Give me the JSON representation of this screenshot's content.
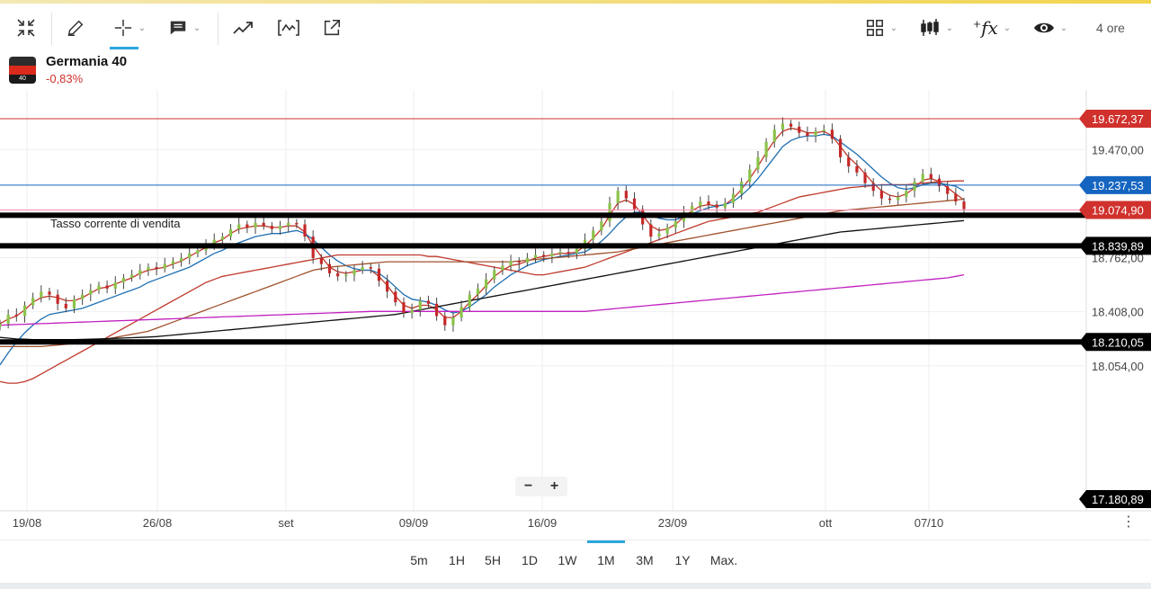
{
  "toolbar": {
    "timeframe_label": "4 ore",
    "icons": [
      "collapse-icon",
      "pencil-icon",
      "crosshair-icon",
      "comment-icon",
      "trend-icon",
      "indicator-box-icon",
      "external-link-icon",
      "layout-grid-icon",
      "candles-icon",
      "fx-icon",
      "eye-icon"
    ]
  },
  "instrument": {
    "name": "Germania 40",
    "change": "-0,83%",
    "flag_label": "40"
  },
  "chart_data": {
    "type": "line",
    "annotation": "Tasso corrente di vendita",
    "x_labels": [
      "19/08",
      "26/08",
      "set",
      "09/09",
      "16/09",
      "23/09",
      "ott",
      "07/10"
    ],
    "y_ticks": [
      "19.470,00",
      "18.762,00",
      "18.408,00",
      "18.054,00"
    ],
    "ylim": [
      17180.89,
      19672.37
    ],
    "price_tags": [
      {
        "value": 19672.37,
        "label": "19.672,37",
        "color": "#d0312d",
        "line": "#d0312d",
        "weight": 1
      },
      {
        "value": 19237.53,
        "label": "19.237,53",
        "color": "#1565c0",
        "line": "#1565c0",
        "weight": 1
      },
      {
        "value": 19074.9,
        "label": "19.074,90",
        "color": "#d0312d",
        "line": "#f48fb1",
        "weight": 1
      },
      {
        "value": 18839.89,
        "label": "18.839,89",
        "color": "#000000",
        "line": "#000000",
        "weight": 6
      },
      {
        "value": 18210.05,
        "label": "18.210,05",
        "color": "#000000",
        "line": "#000000",
        "weight": 6
      },
      {
        "value": 17180.89,
        "label": "17.180,89",
        "color": "#000000",
        "line": null,
        "weight": 0
      }
    ],
    "support_line_extra": 19040,
    "candles_close": [
      18330,
      18390,
      18380,
      18450,
      18500,
      18540,
      18520,
      18460,
      18430,
      18490,
      18520,
      18550,
      18580,
      18560,
      18600,
      18630,
      18650,
      18680,
      18700,
      18690,
      18720,
      18740,
      18760,
      18790,
      18810,
      18850,
      18880,
      18900,
      18950,
      18980,
      18960,
      18990,
      18970,
      18950,
      18970,
      18990,
      18980,
      18900,
      18760,
      18720,
      18660,
      18640,
      18650,
      18680,
      18700,
      18690,
      18610,
      18540,
      18470,
      18400,
      18420,
      18480,
      18460,
      18380,
      18320,
      18370,
      18440,
      18520,
      18560,
      18620,
      18680,
      18710,
      18740,
      18730,
      18760,
      18780,
      18770,
      18790,
      18800,
      18790,
      18820,
      18880,
      18940,
      19000,
      19120,
      19200,
      19150,
      19080,
      18980,
      18900,
      18920,
      18960,
      19000,
      19060,
      19100,
      19130,
      19110,
      19090,
      19120,
      19180,
      19260,
      19340,
      19420,
      19520,
      19600,
      19640,
      19620,
      19580,
      19560,
      19590,
      19600,
      19540,
      19420,
      19360,
      19320,
      19250,
      19200,
      19150,
      19140,
      19160,
      19200,
      19260,
      19310,
      19280,
      19230,
      19180,
      19130,
      19080
    ],
    "series": [
      {
        "color": "#c0392b",
        "values": [
          18330,
          18360,
          18380,
          18420,
          18470,
          18500,
          18510,
          18500,
          18480,
          18480,
          18500,
          18530,
          18560,
          18570,
          18590,
          18610,
          18630,
          18660,
          18680,
          18690,
          18700,
          18720,
          18740,
          18770,
          18800,
          18830,
          18860,
          18880,
          18920,
          18950,
          18960,
          18970,
          18970,
          18960,
          18960,
          18970,
          18970,
          18930,
          18840,
          18770,
          18700,
          18670,
          18660,
          18670,
          18680,
          18680,
          18640,
          18580,
          18510,
          18450,
          18430,
          18450,
          18450,
          18420,
          18370,
          18370,
          18410,
          18470,
          18520,
          18580,
          18640,
          18680,
          18710,
          18720,
          18740,
          18760,
          18770,
          18780,
          18790,
          18790,
          18800,
          18840,
          18890,
          18950,
          19040,
          19120,
          19140,
          19110,
          19040,
          18970,
          18940,
          18950,
          18980,
          19030,
          19070,
          19100,
          19110,
          19100,
          19110,
          19150,
          19210,
          19280,
          19360,
          19450,
          19530,
          19590,
          19610,
          19600,
          19580,
          19580,
          19590,
          19560,
          19490,
          19420,
          19370,
          19310,
          19250,
          19200,
          19170,
          19160,
          19180,
          19220,
          19270,
          19280,
          19260,
          19220,
          19180,
          19140
        ]
      },
      {
        "color": "#1f6fb2",
        "values": [
          18060,
          18140,
          18210,
          18270,
          18320,
          18360,
          18390,
          18400,
          18410,
          18420,
          18430,
          18450,
          18470,
          18490,
          18510,
          18530,
          18550,
          18570,
          18600,
          18620,
          18640,
          18660,
          18680,
          18700,
          18730,
          18760,
          18790,
          18810,
          18840,
          18860,
          18880,
          18900,
          18910,
          18920,
          18920,
          18930,
          18940,
          18920,
          18880,
          18830,
          18780,
          18740,
          18710,
          18690,
          18680,
          18680,
          18660,
          18620,
          18570,
          18520,
          18490,
          18480,
          18470,
          18450,
          18420,
          18400,
          18410,
          18440,
          18480,
          18520,
          18570,
          18610,
          18650,
          18680,
          18710,
          18730,
          18750,
          18760,
          18770,
          18780,
          18790,
          18800,
          18830,
          18870,
          18920,
          18980,
          19030,
          19060,
          19060,
          19040,
          19020,
          19010,
          19010,
          19030,
          19050,
          19070,
          19090,
          19100,
          19110,
          19130,
          19170,
          19220,
          19280,
          19350,
          19420,
          19490,
          19530,
          19550,
          19560,
          19560,
          19570,
          19560,
          19520,
          19480,
          19440,
          19390,
          19340,
          19290,
          19250,
          19220,
          19210,
          19220,
          19240,
          19250,
          19250,
          19240,
          19230,
          19200
        ]
      },
      {
        "color": "#c0392b",
        "values": [
          17950,
          17940,
          17940,
          17950,
          17970,
          18000,
          18030,
          18060,
          18090,
          18120,
          18150,
          18180,
          18210,
          18240,
          18270,
          18300,
          18330,
          18360,
          18390,
          18420,
          18450,
          18480,
          18510,
          18540,
          18570,
          18600,
          18620,
          18640,
          18650,
          18660,
          18670,
          18680,
          18690,
          18700,
          18710,
          18720,
          18730,
          18740,
          18750,
          18760,
          18770,
          18780,
          18780,
          18780,
          18780,
          18780,
          18780,
          18780,
          18780,
          18780,
          18780,
          18780,
          18770,
          18770,
          18760,
          18750,
          18740,
          18730,
          18720,
          18710,
          18700,
          18690,
          18680,
          18670,
          18660,
          18650,
          18650,
          18660,
          18670,
          18680,
          18690,
          18700,
          18720,
          18740,
          18760,
          18780,
          18800,
          18820,
          18840,
          18860,
          18880,
          18900,
          18920,
          18940,
          18960,
          18980,
          19000,
          19010,
          19020,
          19030,
          19040,
          19050,
          19060,
          19080,
          19100,
          19120,
          19140,
          19160,
          19170,
          19180,
          19190,
          19200,
          19210,
          19220,
          19225,
          19230,
          19235,
          19240,
          19240,
          19240,
          19240,
          19245,
          19250,
          19255,
          19260,
          19262,
          19265,
          19265
        ]
      },
      {
        "color": "#a0522d",
        "values": [
          18180,
          18180,
          18180,
          18180,
          18180,
          18180,
          18185,
          18190,
          18195,
          18200,
          18205,
          18210,
          18220,
          18230,
          18240,
          18250,
          18260,
          18270,
          18280,
          18300,
          18320,
          18340,
          18360,
          18380,
          18400,
          18420,
          18440,
          18460,
          18480,
          18500,
          18520,
          18540,
          18560,
          18580,
          18600,
          18620,
          18640,
          18660,
          18680,
          18690,
          18700,
          18705,
          18710,
          18715,
          18720,
          18725,
          18730,
          18735,
          18735,
          18735,
          18735,
          18735,
          18735,
          18735,
          18735,
          18735,
          18735,
          18735,
          18735,
          18735,
          18735,
          18735,
          18735,
          18740,
          18745,
          18750,
          18755,
          18760,
          18765,
          18770,
          18775,
          18780,
          18785,
          18790,
          18795,
          18800,
          18810,
          18820,
          18830,
          18840,
          18850,
          18860,
          18870,
          18880,
          18890,
          18900,
          18910,
          18920,
          18930,
          18940,
          18950,
          18960,
          18970,
          18980,
          18990,
          19000,
          19010,
          19020,
          19030,
          19040,
          19050,
          19060,
          19070,
          19075,
          19080,
          19085,
          19090,
          19095,
          19100,
          19105,
          19110,
          19115,
          19120,
          19125,
          19130,
          19135,
          19140,
          19145
        ]
      },
      {
        "color": "#111111",
        "values": [
          18240,
          18235,
          18230,
          18228,
          18226,
          18225,
          18225,
          18225,
          18225,
          18226,
          18227,
          18228,
          18230,
          18232,
          18234,
          18236,
          18238,
          18240,
          18242,
          18245,
          18250,
          18255,
          18260,
          18265,
          18270,
          18275,
          18280,
          18285,
          18290,
          18295,
          18300,
          18305,
          18310,
          18315,
          18320,
          18325,
          18330,
          18335,
          18340,
          18345,
          18350,
          18355,
          18360,
          18365,
          18370,
          18375,
          18380,
          18385,
          18390,
          18400,
          18410,
          18420,
          18430,
          18440,
          18450,
          18460,
          18470,
          18480,
          18490,
          18500,
          18510,
          18520,
          18530,
          18540,
          18550,
          18560,
          18570,
          18580,
          18590,
          18600,
          18610,
          18620,
          18630,
          18640,
          18650,
          18660,
          18670,
          18680,
          18690,
          18700,
          18710,
          18720,
          18730,
          18740,
          18750,
          18760,
          18770,
          18780,
          18790,
          18800,
          18810,
          18820,
          18830,
          18840,
          18850,
          18860,
          18870,
          18880,
          18890,
          18900,
          18910,
          18920,
          18930,
          18935,
          18940,
          18945,
          18950,
          18955,
          18960,
          18965,
          18970,
          18975,
          18980,
          18985,
          18990,
          18995,
          19000,
          19005
        ]
      },
      {
        "color": "#c020c0",
        "values": [
          18320,
          18322,
          18324,
          18326,
          18328,
          18330,
          18332,
          18334,
          18336,
          18338,
          18340,
          18342,
          18344,
          18346,
          18348,
          18350,
          18352,
          18354,
          18356,
          18358,
          18360,
          18362,
          18364,
          18366,
          18368,
          18370,
          18372,
          18374,
          18376,
          18378,
          18380,
          18382,
          18384,
          18386,
          18388,
          18390,
          18392,
          18394,
          18396,
          18398,
          18400,
          18402,
          18404,
          18406,
          18408,
          18410,
          18410,
          18410,
          18410,
          18410,
          18410,
          18410,
          18410,
          18410,
          18410,
          18410,
          18410,
          18410,
          18410,
          18410,
          18410,
          18410,
          18410,
          18410,
          18410,
          18410,
          18410,
          18410,
          18410,
          18410,
          18410,
          18410,
          18415,
          18420,
          18425,
          18430,
          18435,
          18440,
          18445,
          18450,
          18455,
          18460,
          18465,
          18470,
          18475,
          18480,
          18485,
          18490,
          18495,
          18500,
          18505,
          18510,
          18515,
          18520,
          18525,
          18530,
          18535,
          18540,
          18545,
          18550,
          18555,
          18560,
          18565,
          18570,
          18575,
          18580,
          18585,
          18590,
          18595,
          18600,
          18605,
          18610,
          18615,
          18620,
          18625,
          18630,
          18640,
          18650
        ]
      }
    ]
  },
  "zoom": {
    "minus": "−",
    "plus": "+"
  },
  "periods": [
    "5m",
    "1H",
    "5H",
    "1D",
    "1W",
    "1M",
    "3M",
    "1Y",
    "Max."
  ],
  "active_period": "1M"
}
